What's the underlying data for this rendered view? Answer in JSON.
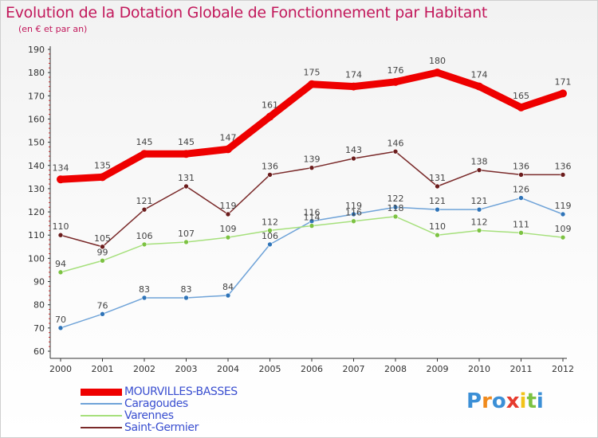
{
  "title": "Evolution de la Dotation Globale de Fonctionnement par Habitant",
  "subtitle": "(en € et par an)",
  "logo": {
    "text": "Proxiti",
    "letters": [
      "P",
      "r",
      "o",
      "x",
      "i",
      "t",
      "i"
    ],
    "colors": [
      "#3b8fd6",
      "#f08a1c",
      "#3b8fd6",
      "#e63b2e",
      "#f2c318",
      "#7cc242",
      "#3b8fd6"
    ]
  },
  "chart_data": {
    "type": "line",
    "title": "Evolution de la Dotation Globale de Fonctionnement par Habitant",
    "ylabel": "(en € et par an)",
    "ylim": [
      60,
      190
    ],
    "yticks": [
      60,
      70,
      80,
      90,
      100,
      110,
      120,
      130,
      140,
      150,
      160,
      170,
      180,
      190
    ],
    "x": [
      "2000",
      "2001",
      "2002",
      "2003",
      "2004",
      "2005",
      "2006",
      "2007",
      "2008",
      "2009",
      "2010",
      "2011",
      "2012"
    ],
    "grid": false,
    "series": [
      {
        "name": "MOURVILLES-BASSES",
        "color": "#ee0000",
        "marker": "#ee0000",
        "thick": true,
        "values": [
          134,
          135,
          145,
          145,
          147,
          161,
          175,
          174,
          176,
          180,
          174,
          165,
          171
        ]
      },
      {
        "name": "Caragoudes",
        "color": "#6fa3d8",
        "marker": "#2f74b8",
        "thick": false,
        "values": [
          70,
          76,
          83,
          83,
          84,
          106,
          116,
          119,
          122,
          121,
          121,
          126,
          119
        ]
      },
      {
        "name": "Varennes",
        "color": "#a6e07c",
        "marker": "#7cc242",
        "thick": false,
        "values": [
          94,
          99,
          106,
          107,
          109,
          112,
          114,
          116,
          118,
          110,
          112,
          111,
          109
        ]
      },
      {
        "name": "Saint-Germier",
        "color": "#7a2a2a",
        "marker": "#6b1c1c",
        "thick": false,
        "values": [
          110,
          105,
          121,
          131,
          119,
          136,
          139,
          143,
          146,
          131,
          138,
          136,
          136
        ]
      }
    ]
  }
}
